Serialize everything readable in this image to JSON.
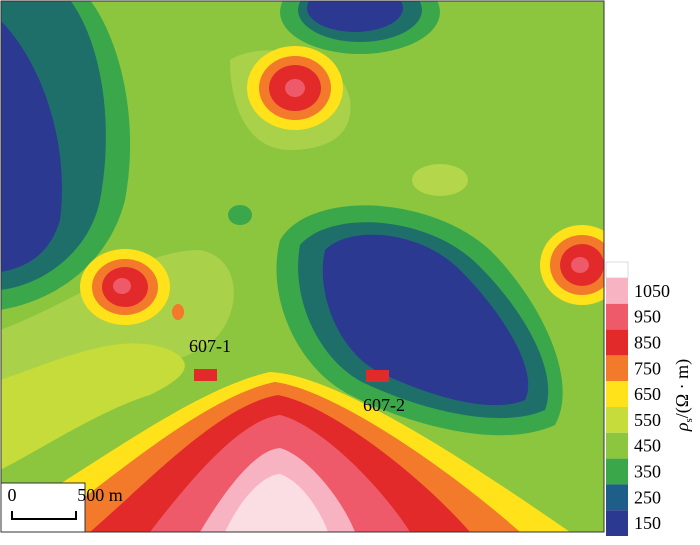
{
  "labels": [
    "607-1",
    "607-2"
  ],
  "scale_bar": {
    "start": "0",
    "end": "500 m"
  },
  "legend": {
    "symbol": "ρ",
    "subscript": "s",
    "unit": "/(Ω · m)",
    "ticks": [
      1050,
      950,
      850,
      750,
      650,
      550,
      450,
      350,
      250,
      150
    ],
    "colors": [
      "#f7b3c2",
      "#ee5a6a",
      "#e32a2a",
      "#f27a2a",
      "#ffe21a",
      "#c5dc3a",
      "#8cc63f",
      "#3aa84a",
      "#1e5f8a",
      "#2b3990"
    ],
    "top_color": "#ffffff"
  }
}
